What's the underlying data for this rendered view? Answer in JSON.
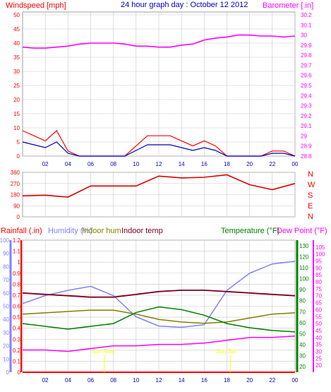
{
  "title": "24 hour graph day : October 12 2012",
  "hours": [
    "02",
    "04",
    "06",
    "08",
    "10",
    "12",
    "14",
    "16",
    "18",
    "20",
    "22",
    "00"
  ],
  "colors": {
    "wind_avg": "#0000c0",
    "wind_gust": "#ff0000",
    "barometer": "#ff00ff",
    "direction": "#dd0000",
    "rain": "#ff0000",
    "humidity": "#8080ff",
    "indoor_hum": "#808000",
    "indoor_temp": "#800020",
    "temperature": "#008000",
    "dew_point": "#ff00ff",
    "grid": "#c8c8c8"
  },
  "panels": {
    "wind": {
      "left_label": "Windspeed [mph]",
      "right_label": "Barometer [.in]",
      "left_ticks": [
        "0",
        "5",
        "10",
        "15",
        "20",
        "25",
        "30",
        "35",
        "40",
        "45",
        "50"
      ],
      "right_ticks": [
        "28.8",
        "28.9",
        "29",
        "29.1",
        "29.2",
        "29.3",
        "29.4",
        "29.5",
        "29.6",
        "29.7",
        "29.8",
        "29.9",
        "30",
        "30.1",
        "30.2"
      ]
    },
    "direction": {
      "left_ticks": [
        "0",
        "90",
        "180",
        "270",
        "360"
      ],
      "compass": [
        "N",
        "W",
        "S",
        "E",
        "N"
      ]
    },
    "temp": {
      "labels": {
        "rainfall": "Rainfall (.in)",
        "humidity": "Humidity (%)",
        "indoor_hum": "Indoor hum",
        "indoor_temp": "Indoor temp",
        "temperature": "Temperature (°F)",
        "dew_point": "Dew Point (°F)"
      },
      "humidity_ticks": [
        "0",
        "10",
        "20",
        "30",
        "40",
        "50",
        "60",
        "70",
        "80",
        "90",
        "100"
      ],
      "rain_ticks": [
        "0",
        "0.1",
        "0.2",
        "0.3",
        "0.4",
        "0.5",
        "0.6",
        "0.7",
        "0.8",
        "0.9",
        "1",
        "1.1",
        "1.2"
      ],
      "temp_ticks": [
        "20",
        "25",
        "30",
        "35",
        "40",
        "45",
        "50",
        "55",
        "60",
        "65",
        "70",
        "75",
        "80",
        "85",
        "90",
        "95",
        "100",
        "105"
      ],
      "temp_ticks_outer": [
        "20",
        "30",
        "40",
        "50",
        "60",
        "70",
        "80",
        "90",
        "100",
        "110",
        "120",
        "130"
      ],
      "sunrise": "Sun Rise",
      "sunset": "Sun Set"
    }
  },
  "chart_data": [
    {
      "type": "line",
      "title": "24 hour graph day : October 12 2012",
      "xlabel": "",
      "ylabel": "Windspeed [mph]",
      "ylim": [
        0,
        50
      ],
      "x": [
        "00:00",
        "01:00",
        "02:00",
        "03:00",
        "04:00",
        "05:00",
        "06:00",
        "07:00",
        "08:00",
        "09:00",
        "10:00",
        "11:00",
        "12:00",
        "13:00",
        "14:00",
        "15:00",
        "16:00",
        "17:00",
        "18:00",
        "19:00",
        "20:00",
        "21:00",
        "22:00",
        "23:00",
        "24:00"
      ],
      "series": [
        {
          "name": "Windspeed [mph]",
          "values": [
            5,
            4,
            3,
            5,
            1,
            0,
            0,
            0,
            0,
            0,
            2,
            4,
            4,
            4,
            3,
            2,
            3,
            2,
            0,
            0,
            0,
            0,
            1,
            1,
            0
          ]
        },
        {
          "name": "Barometer [.in]",
          "axis": "right",
          "ylim": [
            28.8,
            30.2
          ],
          "values": [
            29.88,
            29.87,
            29.87,
            29.88,
            29.89,
            29.91,
            29.92,
            29.92,
            29.92,
            29.91,
            29.89,
            29.89,
            29.88,
            29.88,
            29.9,
            29.91,
            29.95,
            29.97,
            29.98,
            30.0,
            30.0,
            29.99,
            29.99,
            29.98,
            29.99
          ]
        }
      ]
    },
    {
      "type": "line",
      "ylabel": "Wind direction",
      "ylim": [
        0,
        360
      ],
      "x": [
        "00:00",
        "02:00",
        "04:00",
        "06:00",
        "08:00",
        "10:00",
        "12:00",
        "14:00",
        "16:00",
        "18:00",
        "20:00",
        "22:00",
        "24:00"
      ],
      "series": [
        {
          "name": "Wind direction",
          "values": [
            170,
            175,
            160,
            250,
            250,
            250,
            330,
            315,
            320,
            340,
            260,
            220,
            270
          ]
        }
      ]
    },
    {
      "type": "line",
      "x": [
        "00:00",
        "02:00",
        "04:00",
        "06:00",
        "08:00",
        "10:00",
        "12:00",
        "14:00",
        "16:00",
        "18:00",
        "20:00",
        "22:00",
        "24:00"
      ],
      "series": [
        {
          "name": "Humidity (%)",
          "values": [
            52,
            58,
            62,
            65,
            58,
            42,
            35,
            34,
            36,
            62,
            75,
            82,
            84
          ]
        },
        {
          "name": "Indoor hum",
          "values": [
            44,
            45,
            46,
            47,
            47,
            44,
            40,
            38,
            37,
            38,
            41,
            44,
            45
          ]
        },
        {
          "name": "Indoor temp",
          "unit": "°F",
          "values": [
            72,
            71,
            70,
            69,
            69,
            71,
            73,
            74,
            74,
            73,
            72,
            71,
            70
          ]
        },
        {
          "name": "Temperature (°F)",
          "values": [
            50,
            48,
            46,
            48,
            50,
            58,
            62,
            60,
            56,
            50,
            47,
            45,
            44
          ]
        },
        {
          "name": "Dew Point (°F)",
          "values": [
            31,
            31,
            30,
            32,
            34,
            34,
            35,
            35,
            36,
            38,
            40,
            40,
            41
          ]
        },
        {
          "name": "Rainfall (.in)",
          "values": [
            0,
            0,
            0,
            0,
            0,
            0,
            0,
            0,
            0,
            0,
            0,
            0,
            0
          ]
        }
      ]
    }
  ]
}
